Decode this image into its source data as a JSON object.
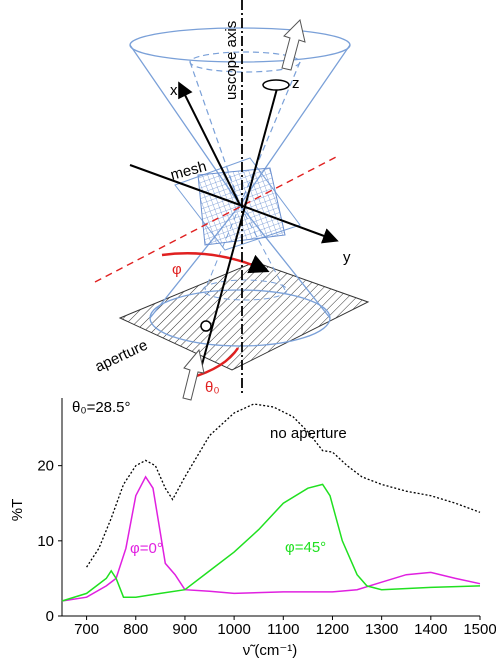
{
  "diagram": {
    "labels": {
      "axis": "uscope axis",
      "x": "x",
      "z": "z",
      "y": "y",
      "mesh": "mesh",
      "phi": "φ",
      "aperture": "aperture",
      "theta": "θ₀"
    }
  },
  "chart_data": {
    "type": "line",
    "x_label": "ν̃ (cm⁻¹)",
    "y_label": "%T",
    "annotations": [
      "θ₀=28.5°"
    ],
    "xlim": [
      650,
      1500
    ],
    "xticks": [
      700,
      800,
      900,
      1000,
      1100,
      1200,
      1300,
      1400,
      1500
    ],
    "ylim": [
      0,
      29
    ],
    "yticks": [
      0,
      10,
      20
    ],
    "series": [
      {
        "name": "no aperture",
        "color": "#000000",
        "style": "dotted",
        "x": [
          700,
          725,
          750,
          775,
          800,
          820,
          840,
          860,
          875,
          900,
          950,
          1000,
          1040,
          1080,
          1120,
          1150,
          1180,
          1200,
          1230,
          1260,
          1300,
          1350,
          1400,
          1450,
          1500
        ],
        "values": [
          6.5,
          9,
          13,
          17.5,
          20,
          20.7,
          20,
          17,
          15.5,
          18.5,
          24,
          27,
          28.2,
          27.8,
          26.5,
          24.5,
          22,
          21.8,
          20,
          18.5,
          17.5,
          16.6,
          16,
          15,
          13.8
        ]
      },
      {
        "name": "φ=0°",
        "color": "#e020e0",
        "style": "solid",
        "x": [
          650,
          700,
          740,
          760,
          780,
          800,
          820,
          835,
          850,
          860,
          880,
          900,
          950,
          1000,
          1100,
          1200,
          1250,
          1300,
          1350,
          1400,
          1450,
          1500
        ],
        "values": [
          2,
          2.5,
          4,
          5,
          9,
          16,
          18.5,
          17,
          11,
          7,
          5.5,
          3.5,
          3.3,
          3,
          3.2,
          3.2,
          3.5,
          4.5,
          5.5,
          5.8,
          5,
          4.3
        ]
      },
      {
        "name": "φ=45°",
        "color": "#20e020",
        "style": "solid",
        "x": [
          650,
          700,
          740,
          750,
          760,
          775,
          800,
          850,
          900,
          950,
          1000,
          1050,
          1100,
          1150,
          1180,
          1195,
          1220,
          1250,
          1270,
          1300,
          1400,
          1500
        ],
        "values": [
          2,
          3,
          5,
          6,
          5,
          2.5,
          2.5,
          3,
          3.5,
          6,
          8.5,
          11.5,
          15,
          17,
          17.5,
          16,
          10,
          5.5,
          4,
          3.5,
          3.8,
          4
        ]
      }
    ]
  }
}
